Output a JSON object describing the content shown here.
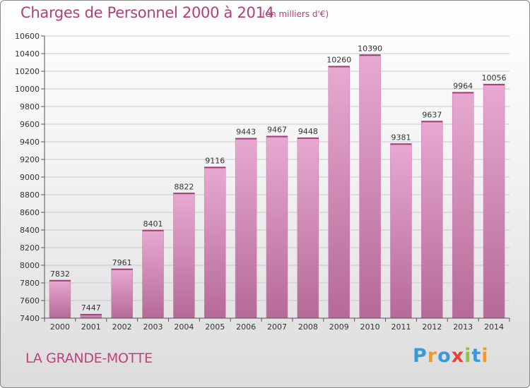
{
  "header": {
    "title": "Charges de Personnel 2000 à 2014",
    "subtitle": "(en milliers d'€)"
  },
  "footer": {
    "commune": "LA GRANDE-MOTTE",
    "logo_text": "Proxiti",
    "logo_letters": [
      {
        "char": "P",
        "color": "#3a9ad9"
      },
      {
        "char": "r",
        "color": "#f39a1e"
      },
      {
        "char": "o",
        "color": "#3a9ad9"
      },
      {
        "char": "x",
        "color": "#e0443a"
      },
      {
        "char": "i",
        "color": "#8cc63f"
      },
      {
        "char": "t",
        "color": "#3a9ad9"
      },
      {
        "char": "i",
        "color": "#f39a1e"
      }
    ]
  },
  "colors": {
    "title": "#b0407a",
    "bar_light": "#e7a9d1",
    "bar_dark": "#b56a97",
    "grid": "#c8c8c8"
  },
  "chart_data": {
    "type": "bar",
    "categories": [
      "2000",
      "2001",
      "2002",
      "2003",
      "2004",
      "2005",
      "2006",
      "2007",
      "2008",
      "2009",
      "2010",
      "2011",
      "2012",
      "2013",
      "2014"
    ],
    "values": [
      7832,
      7447,
      7961,
      8401,
      8822,
      9116,
      9443,
      9467,
      9448,
      10260,
      10390,
      9381,
      9637,
      9964,
      10056
    ],
    "ylim": [
      7400,
      10600
    ],
    "yticks": [
      7400,
      7600,
      7800,
      8000,
      8200,
      8400,
      8600,
      8800,
      9000,
      9200,
      9400,
      9600,
      9800,
      10000,
      10200,
      10400,
      10600
    ],
    "grid": true,
    "xlabel": "",
    "ylabel": ""
  }
}
